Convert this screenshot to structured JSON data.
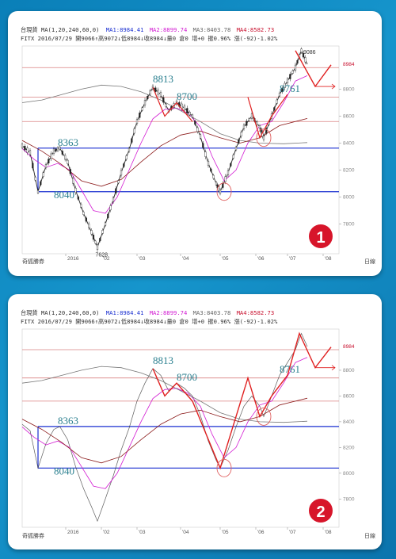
{
  "header": {
    "line1_a": "台現貨 MA(1,20,240,60,0)",
    "ma1": "MA1:8984.41",
    "ma2": "MA2:8899.74",
    "ma3": "MA3:8403.78",
    "ma4": "MA4:8582.73",
    "line2": "FITX 2016/07/29 開9066↑高9072↓低8984↓收8984↓量0 倉0 增+0 振0.96% 漲(-92)-1.02%"
  },
  "footer": {
    "brand": "奇狐勝券",
    "right_label": "日線"
  },
  "badges": {
    "panel1": "1",
    "panel2": "2"
  },
  "chart_data": [
    {
      "type": "line",
      "panel": "1",
      "style": "candlestick with moving averages",
      "x_tick_labels": [
        "2016",
        "'02",
        "'03",
        "'04",
        "'05",
        "'06",
        "'07",
        "'08"
      ],
      "y_tick_labels": [
        "7800",
        "8000",
        "8200",
        "8400",
        "8600",
        "8800"
      ],
      "last_price_label": "8984",
      "ylim": [
        7580,
        9120
      ],
      "series": [
        {
          "values": [
            [
              0,
              8380
            ],
            [
              4,
              8330
            ],
            [
              8,
              8040
            ],
            [
              12,
              8230
            ],
            [
              16,
              8340
            ],
            [
              19,
              8363
            ],
            [
              23,
              8260
            ],
            [
              27,
              8050
            ],
            [
              31,
              7880
            ],
            [
              35,
              7740
            ],
            [
              38,
              7628
            ],
            [
              42,
              7800
            ],
            [
              46,
              7980
            ],
            [
              50,
              8180
            ],
            [
              54,
              8350
            ],
            [
              58,
              8560
            ],
            [
              62,
              8700
            ],
            [
              66,
              8813
            ],
            [
              70,
              8760
            ],
            [
              74,
              8640
            ],
            [
              78,
              8700
            ],
            [
              82,
              8660
            ],
            [
              86,
              8600
            ],
            [
              90,
              8450
            ],
            [
              94,
              8250
            ],
            [
              98,
              8100
            ],
            [
              100,
              8040
            ],
            [
              104,
              8180
            ],
            [
              108,
              8360
            ],
            [
              112,
              8520
            ],
            [
              116,
              8600
            ],
            [
              120,
              8520
            ],
            [
              122,
              8440
            ],
            [
              126,
              8600
            ],
            [
              130,
              8761
            ],
            [
              134,
              8860
            ],
            [
              138,
              8960
            ],
            [
              141,
              9086
            ],
            [
              144,
              8984
            ]
          ]
        },
        {
          "values": [
            [
              0,
              8360
            ],
            [
              6,
              8280
            ],
            [
              12,
              8220
            ],
            [
              18,
              8250
            ],
            [
              24,
              8200
            ],
            [
              30,
              8050
            ],
            [
              36,
              7900
            ],
            [
              42,
              7880
            ],
            [
              48,
              8000
            ],
            [
              54,
              8200
            ],
            [
              60,
              8400
            ],
            [
              66,
              8580
            ],
            [
              72,
              8650
            ],
            [
              78,
              8660
            ],
            [
              84,
              8620
            ],
            [
              90,
              8520
            ],
            [
              96,
              8300
            ],
            [
              102,
              8120
            ],
            [
              108,
              8200
            ],
            [
              114,
              8400
            ],
            [
              120,
              8530
            ],
            [
              126,
              8560
            ],
            [
              132,
              8700
            ],
            [
              138,
              8860
            ],
            [
              144,
              8900
            ]
          ]
        },
        {
          "values": [
            [
              0,
              8700
            ],
            [
              10,
              8720
            ],
            [
              20,
              8760
            ],
            [
              30,
              8800
            ],
            [
              40,
              8830
            ],
            [
              50,
              8820
            ],
            [
              60,
              8780
            ],
            [
              70,
              8720
            ],
            [
              80,
              8640
            ],
            [
              90,
              8560
            ],
            [
              100,
              8470
            ],
            [
              110,
              8420
            ],
            [
              120,
              8400
            ],
            [
              132,
              8395
            ],
            [
              144,
              8404
            ]
          ]
        },
        {
          "values": [
            [
              0,
              8420
            ],
            [
              10,
              8340
            ],
            [
              20,
              8240
            ],
            [
              30,
              8120
            ],
            [
              40,
              8080
            ],
            [
              50,
              8130
            ],
            [
              60,
              8260
            ],
            [
              70,
              8380
            ],
            [
              80,
              8460
            ],
            [
              90,
              8490
            ],
            [
              100,
              8440
            ],
            [
              110,
              8400
            ],
            [
              120,
              8440
            ],
            [
              130,
              8530
            ],
            [
              144,
              8583
            ]
          ]
        }
      ],
      "levels": [
        8363,
        8040
      ],
      "level_labels": [
        "8813",
        "8700",
        "8363",
        "8040",
        "8761"
      ],
      "annotations": [
        "9086",
        "7628"
      ],
      "projection": [
        [
          138,
          9086
        ],
        [
          148,
          8820
        ],
        [
          156,
          8980
        ]
      ],
      "horizontal_lines": [
        8960,
        8740,
        8560
      ],
      "blue_lines": [
        8363,
        8040
      ],
      "circled_lows": [
        [
          102,
          8040
        ],
        [
          122,
          8440
        ]
      ]
    },
    {
      "type": "line",
      "panel": "2",
      "style": "close line with moving averages and swing zigzag",
      "x_tick_labels": [
        "2016",
        "'02",
        "'03",
        "'04",
        "'05",
        "'06",
        "'07",
        "'08"
      ],
      "y_tick_labels": [
        "7800",
        "8000",
        "8200",
        "8400",
        "8600",
        "8800"
      ],
      "last_price_label": "8984",
      "ylim": [
        7580,
        9120
      ],
      "level_labels": [
        "8363",
        "8040",
        "8813",
        "8700",
        "8761"
      ],
      "zigzag": [
        [
          66,
          8813
        ],
        [
          72,
          8600
        ],
        [
          78,
          8700
        ],
        [
          86,
          8560
        ],
        [
          100,
          8040
        ],
        [
          114,
          8740
        ],
        [
          120,
          8440
        ],
        [
          126,
          8600
        ],
        [
          134,
          8761
        ],
        [
          140,
          9086
        ],
        [
          148,
          8820
        ],
        [
          156,
          8980
        ]
      ],
      "horizontal_lines": [
        8960,
        8740,
        8560
      ],
      "blue_lines": [
        8363,
        8040
      ],
      "circled_lows": [
        [
          102,
          8040
        ],
        [
          122,
          8440
        ]
      ]
    }
  ]
}
